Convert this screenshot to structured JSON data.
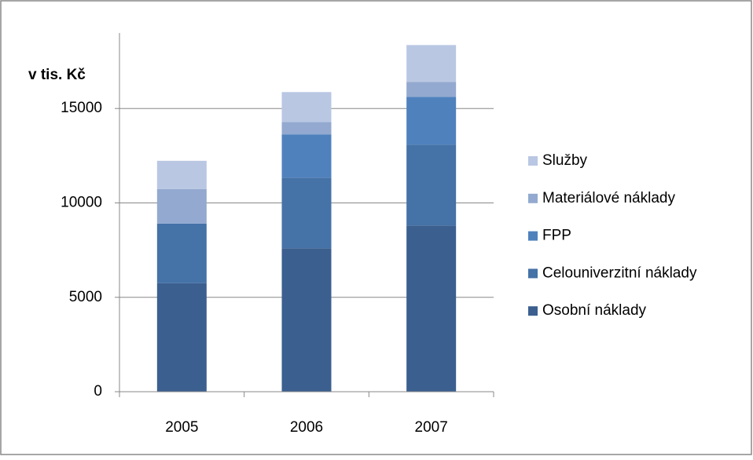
{
  "chart_data": {
    "type": "stacked_bar",
    "y_label": "v tis. Kč",
    "categories": [
      "2005",
      "2006",
      "2007"
    ],
    "series": [
      {
        "name": "Osobní náklady",
        "color": "#3b5f8f",
        "values": [
          5750,
          7600,
          8800
        ]
      },
      {
        "name": "Celouniverzitní náklady",
        "color": "#4572a7",
        "values": [
          3150,
          3740,
          4290
        ]
      },
      {
        "name": "FPP",
        "color": "#4f81bd",
        "values": [
          0,
          2290,
          2530
        ]
      },
      {
        "name": "Materiálové náklady",
        "color": "#93a9cf",
        "values": [
          1830,
          660,
          790
        ]
      },
      {
        "name": "Služby",
        "color": "#b9c7e3",
        "values": [
          1500,
          1580,
          1950
        ]
      }
    ],
    "ylim": [
      0,
      19000
    ],
    "yticks": [
      0,
      5000,
      10000,
      15000
    ],
    "grid": true,
    "legend": "right"
  }
}
